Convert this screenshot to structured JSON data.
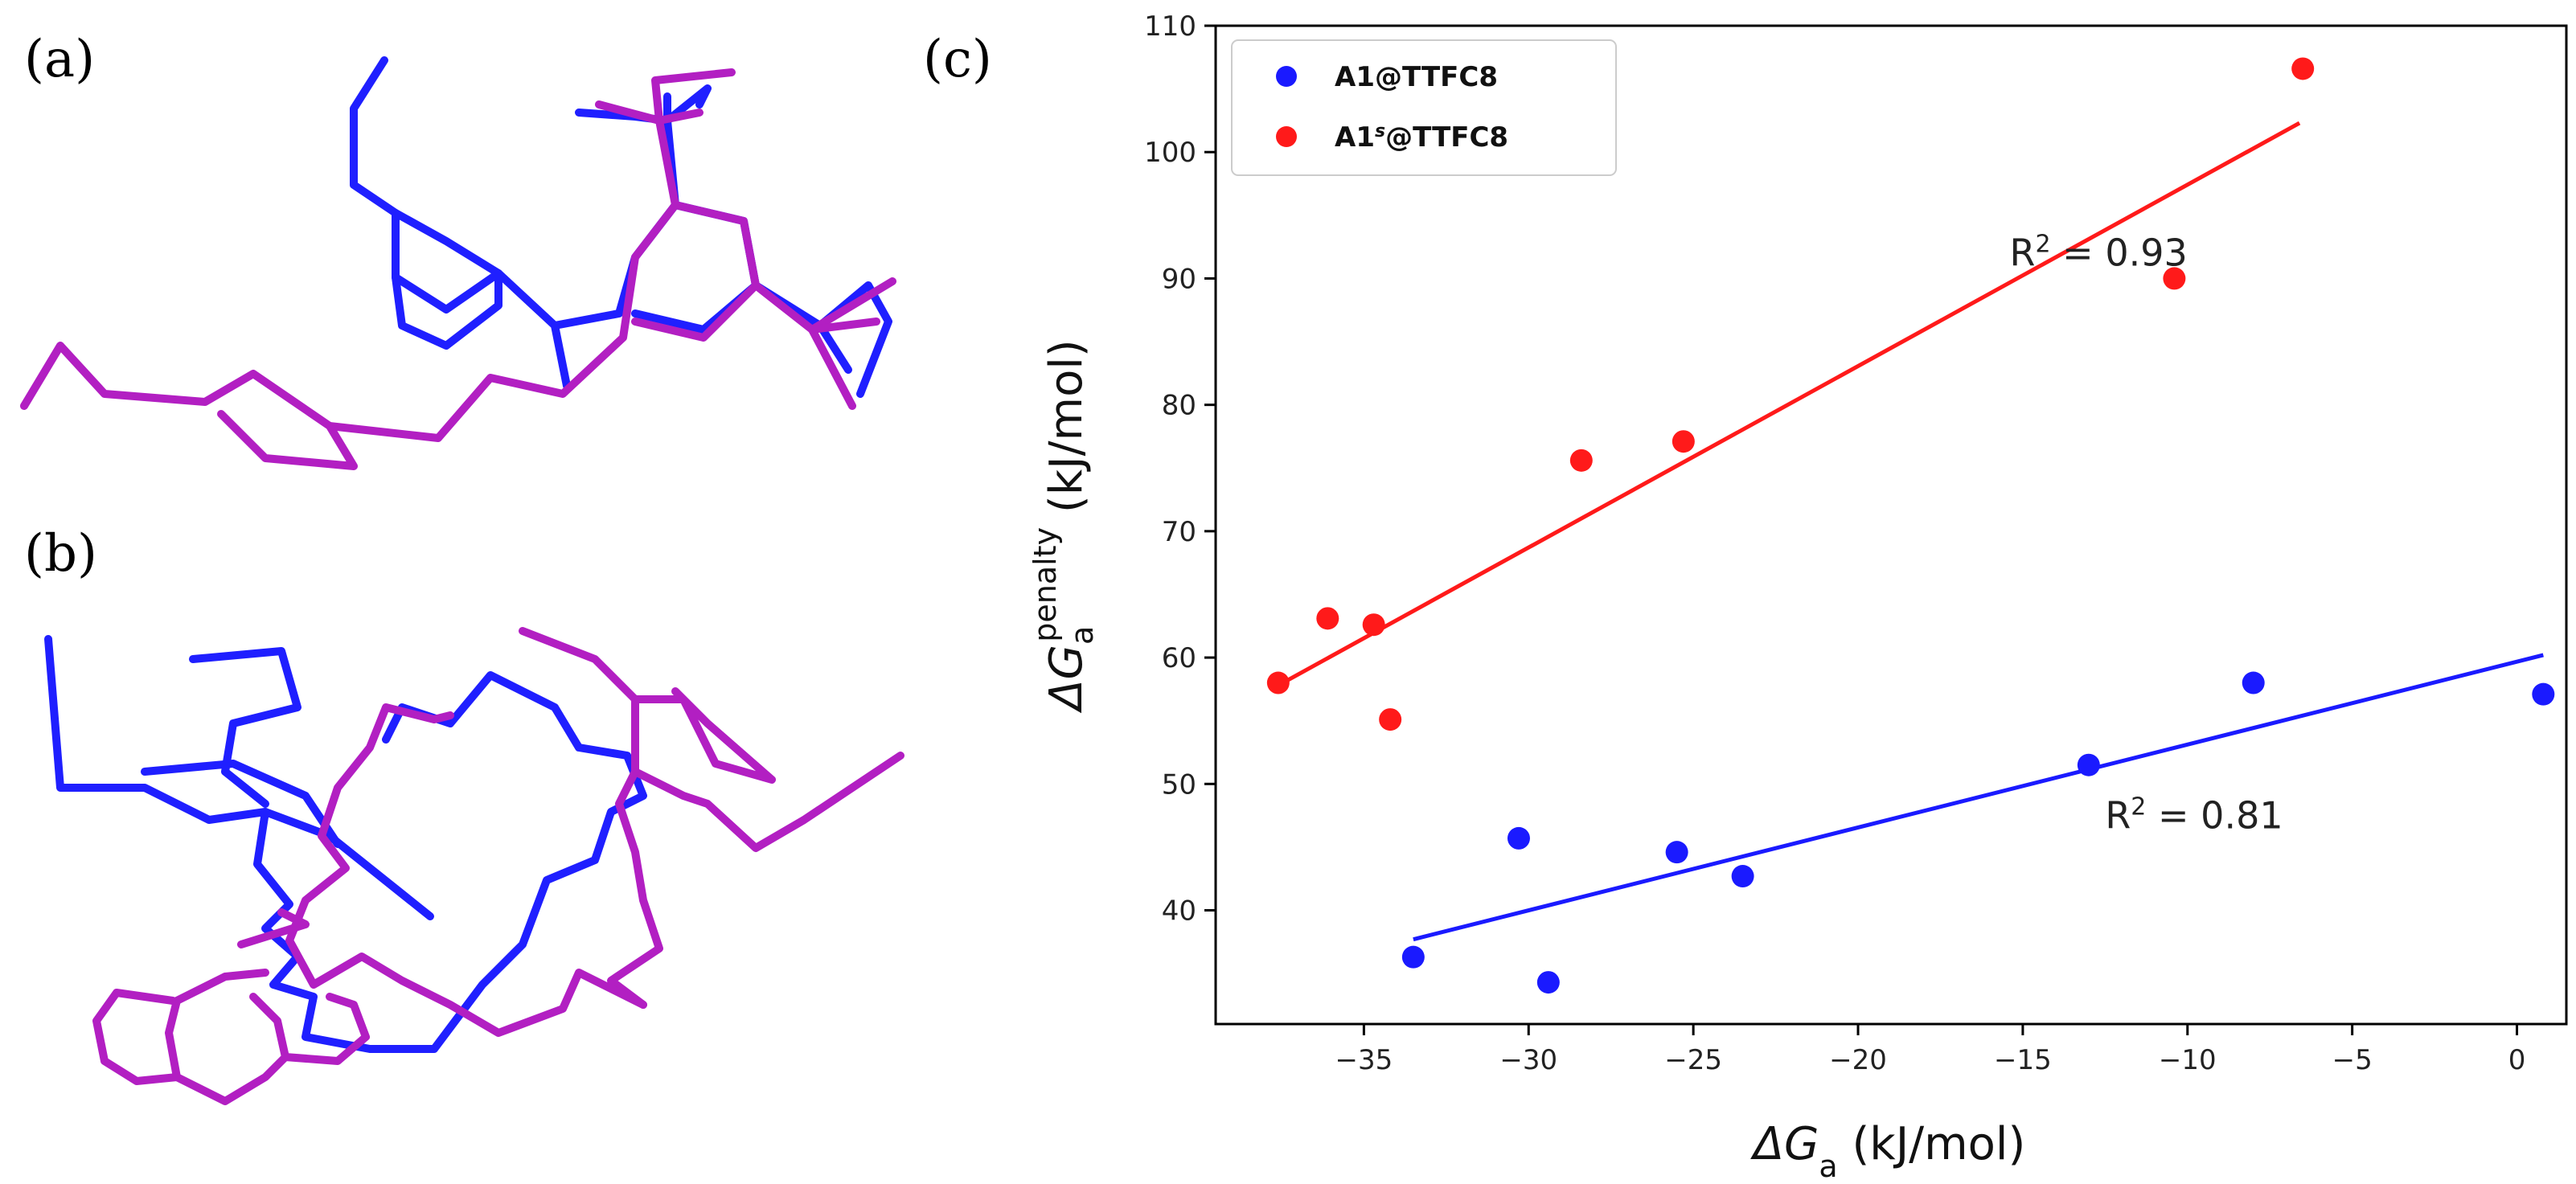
{
  "panels": {
    "a": "(a)",
    "b": "(b)",
    "c": "(c)"
  },
  "molecule_colors": {
    "blue": "#1f1fff",
    "magenta": "#b21fc2"
  },
  "chart_data": {
    "type": "scatter",
    "title": "",
    "xlabel": {
      "symbol": "ΔG",
      "sub": "a",
      "unit": " (kJ/mol)"
    },
    "ylabel": {
      "symbol": "ΔG",
      "sub": "a",
      "sup": "penalty",
      "unit": " (kJ/mol)"
    },
    "xlim": [
      -39.5,
      1.5
    ],
    "ylim": [
      31,
      110
    ],
    "xticks": [
      -35,
      -30,
      -25,
      -20,
      -15,
      -10,
      -5,
      0
    ],
    "xtick_labels": [
      "−35",
      "−30",
      "−25",
      "−20",
      "−15",
      "−10",
      "−5",
      "0"
    ],
    "yticks": [
      40,
      50,
      60,
      70,
      80,
      90,
      100,
      110
    ],
    "ytick_labels": [
      "40",
      "50",
      "60",
      "70",
      "80",
      "90",
      "100",
      "110"
    ],
    "legend_position": "top-left",
    "series": [
      {
        "name": "A1@TTFC8",
        "legend": {
          "base": "A1",
          "sup": "",
          "rest": "@TTFC8"
        },
        "color": "#1a1aff",
        "x": [
          -33.5,
          -30.3,
          -29.4,
          -25.5,
          -23.5,
          -13.0,
          -8.0,
          0.8
        ],
        "y": [
          36.3,
          45.7,
          34.3,
          44.6,
          42.7,
          51.5,
          58.0,
          57.1
        ],
        "fit": {
          "x": [
            -33.5,
            0.8
          ],
          "y": [
            37.7,
            60.2
          ]
        },
        "r2_label": {
          "text": "R",
          "sup": "2",
          "rest": " = 0.81",
          "x": -12.5,
          "y": 46.5
        }
      },
      {
        "name": "A1s@TTFC8",
        "legend": {
          "base": "A1",
          "sup": "s",
          "rest": "@TTFC8"
        },
        "color": "#ff1a1a",
        "x": [
          -37.6,
          -36.1,
          -34.7,
          -34.2,
          -28.4,
          -25.3,
          -10.4,
          -6.5
        ],
        "y": [
          58.0,
          63.1,
          62.6,
          55.1,
          75.6,
          77.1,
          90.0,
          106.6
        ],
        "fit": {
          "x": [
            -37.6,
            -6.6
          ],
          "y": [
            57.8,
            102.3
          ]
        },
        "r2_label": {
          "text": "R",
          "sup": "2",
          "rest": " = 0.93",
          "x": -15.4,
          "y": 91.0
        }
      }
    ]
  }
}
